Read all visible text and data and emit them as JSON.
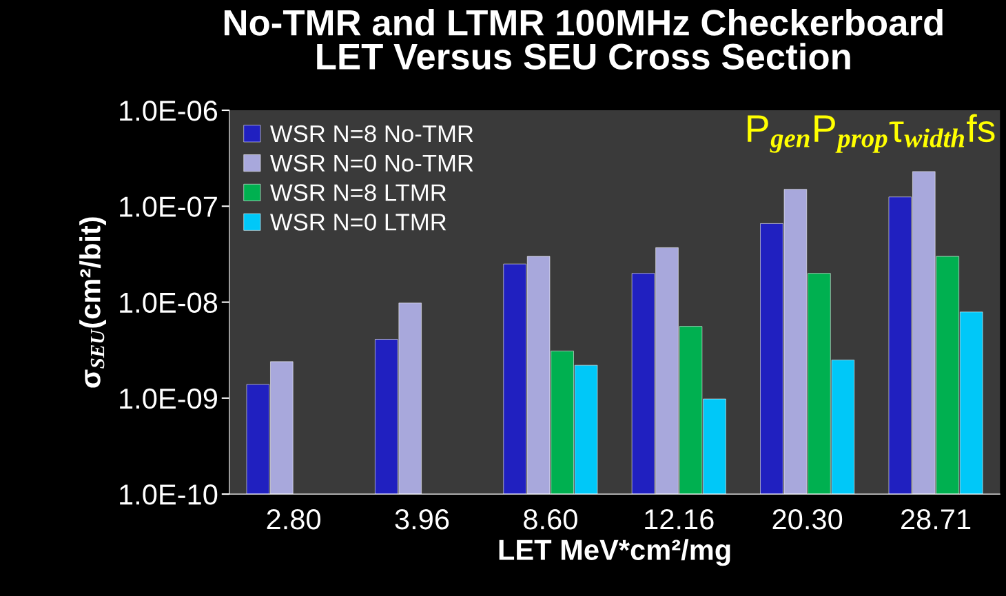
{
  "chart_data": {
    "type": "bar",
    "title": "No-TMR and LTMR 100MHz Checkerboard\nLET Versus SEU Cross Section",
    "xlabel": "LET MeV*cm²/mg",
    "ylabel": "σ$_{SEU}$(cm²/bit)",
    "categories": [
      "2.80",
      "3.96",
      "8.60",
      "12.16",
      "20.30",
      "28.71"
    ],
    "series": [
      {
        "name": "WSR N=8 No-TMR",
        "color": "#2020c0",
        "values": [
          1.39e-09,
          4.1e-09,
          2.5e-08,
          2e-08,
          6.6e-08,
          1.25e-07
        ]
      },
      {
        "name": "WSR N=0 No-TMR",
        "color": "#a8a8dc",
        "values": [
          2.4e-09,
          9.8e-09,
          3e-08,
          3.7e-08,
          1.5e-07,
          2.3e-07
        ]
      },
      {
        "name": "WSR N=8 LTMR",
        "color": "#00b050",
        "values": [
          null,
          null,
          3.1e-09,
          5.6e-09,
          2e-08,
          3e-08
        ]
      },
      {
        "name": "WSR N=0 LTMR",
        "color": "#00c8f8",
        "values": [
          null,
          null,
          2.2e-09,
          9.8e-10,
          2.5e-09,
          7.9e-09
        ]
      }
    ],
    "log": "y",
    "ylim": [
      1e-10,
      1e-06
    ],
    "yticks": [
      {
        "value": 1e-10,
        "label": "1.0E-10"
      },
      {
        "value": 1e-09,
        "label": "1.0E-09"
      },
      {
        "value": 1e-08,
        "label": "1.0E-08"
      },
      {
        "value": 1e-07,
        "label": "1.0E-07"
      },
      {
        "value": 1e-06,
        "label": "1.0E-06"
      }
    ],
    "legend": "top left",
    "grid": false,
    "annotations": [
      "P$_{gen}$P$_{prop}$τ$_{width}$fs"
    ]
  }
}
